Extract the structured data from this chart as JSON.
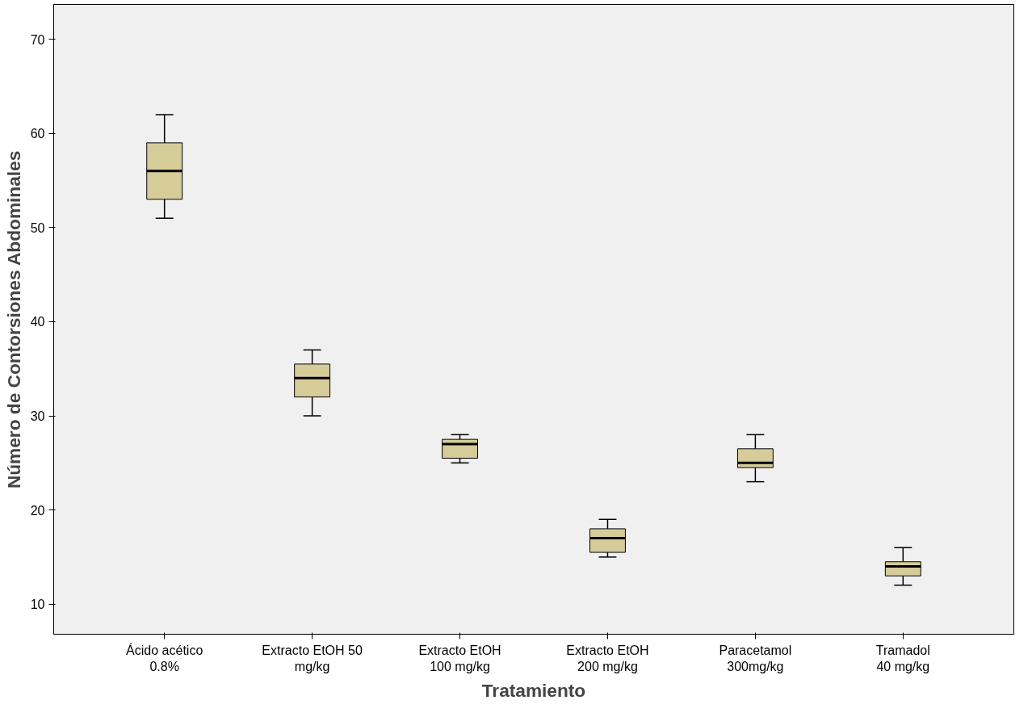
{
  "chart_data": {
    "type": "box",
    "xlabel": "Tratamiento",
    "ylabel": "Número de Contorsiones Abdominales",
    "categories": [
      "Ácido acético\n0.8%",
      "Extracto EtOH 50\nmg/kg",
      "Extracto EtOH\n100 mg/kg",
      "Extracto EtOH\n200 mg/kg",
      "Paracetamol\n300mg/kg",
      "Tramadol\n40 mg/kg"
    ],
    "boxes": [
      {
        "low": 51,
        "q1": 53,
        "median": 56,
        "q3": 59,
        "high": 62
      },
      {
        "low": 30,
        "q1": 32,
        "median": 34,
        "q3": 35.5,
        "high": 37
      },
      {
        "low": 25,
        "q1": 25.5,
        "median": 27,
        "q3": 27.5,
        "high": 28
      },
      {
        "low": 15,
        "q1": 15.5,
        "median": 17,
        "q3": 18,
        "high": 19
      },
      {
        "low": 23,
        "q1": 24.5,
        "median": 25,
        "q3": 26.5,
        "high": 28
      },
      {
        "low": 12,
        "q1": 13,
        "median": 14,
        "q3": 14.5,
        "high": 16
      }
    ],
    "color": "#d6cc9a",
    "ylim": [
      6.8,
      73.7
    ],
    "yticks": [
      10,
      20,
      30,
      40,
      50,
      60,
      70
    ],
    "grid": false
  }
}
